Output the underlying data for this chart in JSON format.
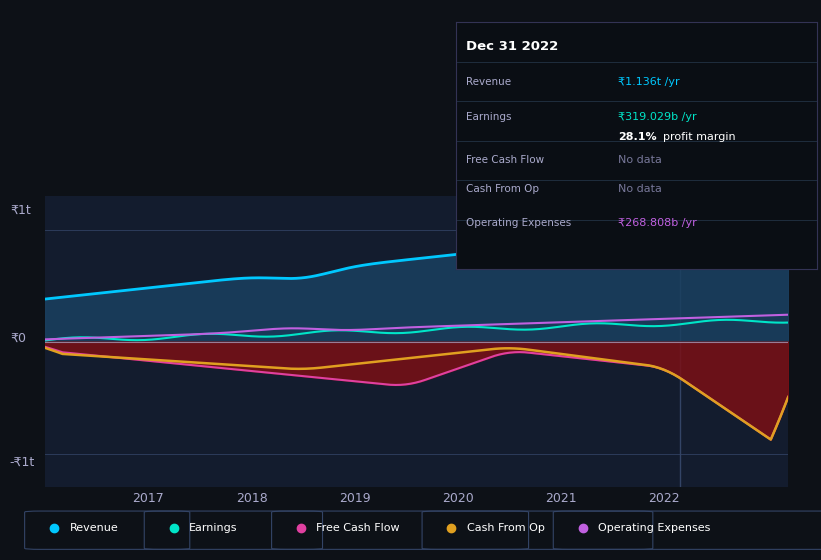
{
  "bg_color": "#0d1117",
  "plot_bg_color": "#131c2e",
  "title_box": {
    "date": "Dec 31 2022",
    "revenue": "₹1.136t /yr",
    "earnings": "₹319.029b /yr",
    "profit_margin": "28.1% profit margin",
    "free_cash_flow": "No data",
    "cash_from_op": "No data",
    "operating_expenses": "₹268.808b /yr"
  },
  "ylabel_pos": "₹1t",
  "ylabel_zero": "₹0",
  "ylabel_neg": "-₹1t",
  "ylim": [
    -1.3,
    1.3
  ],
  "xlim": [
    2016.0,
    2023.2
  ],
  "x_ticks": [
    2017,
    2018,
    2019,
    2020,
    2021,
    2022
  ],
  "series": {
    "revenue": {
      "color": "#00c8ff",
      "fill_color": "#1a4060",
      "label": "Revenue"
    },
    "earnings": {
      "color": "#00e5c8",
      "label": "Earnings"
    },
    "free_cash_flow": {
      "color": "#e040a0",
      "fill_color": "#7a1015",
      "label": "Free Cash Flow"
    },
    "cash_from_op": {
      "color": "#e0a020",
      "label": "Cash From Op"
    },
    "operating_expenses": {
      "color": "#c060e0",
      "label": "Operating Expenses"
    }
  },
  "legend": {
    "revenue_color": "#00c8ff",
    "earnings_color": "#00e5c8",
    "fcf_color": "#e040a0",
    "cash_op_color": "#e0a020",
    "op_exp_color": "#c060e0"
  }
}
